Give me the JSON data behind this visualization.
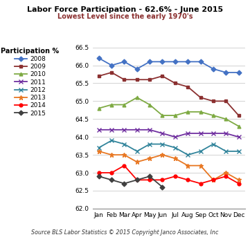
{
  "title": "Labor Force Participation - 62.6% - June 2015",
  "subtitle": "Lowest Level since the early 1970's",
  "source": "Source BLS Labor Statistics © 2015 Copyright Janco Associates, Inc",
  "legend_title": "Participation %",
  "months": [
    "Jan",
    "Feb",
    "Mar",
    "Apr",
    "May",
    "Jun",
    "Jul",
    "Aug",
    "Sep",
    "Oct",
    "Nov",
    "Dec"
  ],
  "ylim": [
    62.0,
    66.5
  ],
  "yticks": [
    62.0,
    62.5,
    63.0,
    63.5,
    64.0,
    64.5,
    65.0,
    65.5,
    66.0,
    66.5
  ],
  "series": {
    "2008": {
      "color": "#4472C4",
      "marker": "D",
      "markersize": 3.5,
      "linewidth": 1.3,
      "values": [
        66.2,
        66.0,
        66.1,
        65.9,
        66.1,
        66.1,
        66.1,
        66.1,
        66.1,
        65.9,
        65.8,
        65.8
      ]
    },
    "2009": {
      "color": "#8B3030",
      "marker": "s",
      "markersize": 3.5,
      "linewidth": 1.3,
      "values": [
        65.7,
        65.8,
        65.6,
        65.6,
        65.6,
        65.7,
        65.5,
        65.4,
        65.1,
        65.0,
        65.0,
        64.6
      ]
    },
    "2010": {
      "color": "#7EAA43",
      "marker": "^",
      "markersize": 3.5,
      "linewidth": 1.3,
      "values": [
        64.8,
        64.9,
        64.9,
        65.1,
        64.9,
        64.6,
        64.6,
        64.7,
        64.7,
        64.6,
        64.5,
        64.3
      ]
    },
    "2011": {
      "color": "#7030A0",
      "marker": "x",
      "markersize": 4,
      "linewidth": 1.3,
      "values": [
        64.2,
        64.2,
        64.2,
        64.2,
        64.2,
        64.1,
        64.0,
        64.1,
        64.1,
        64.1,
        64.1,
        64.0
      ]
    },
    "2012": {
      "color": "#31849B",
      "marker": "x",
      "markersize": 4,
      "linewidth": 1.3,
      "values": [
        63.7,
        63.9,
        63.8,
        63.6,
        63.8,
        63.8,
        63.7,
        63.5,
        63.6,
        63.8,
        63.6,
        63.6
      ]
    },
    "2013": {
      "color": "#E87722",
      "marker": "*",
      "markersize": 5,
      "linewidth": 1.3,
      "values": [
        63.6,
        63.5,
        63.5,
        63.3,
        63.4,
        63.5,
        63.4,
        63.2,
        63.2,
        62.8,
        63.0,
        62.8
      ]
    },
    "2014": {
      "color": "#FF0000",
      "marker": "o",
      "markersize": 3.5,
      "linewidth": 1.3,
      "values": [
        63.0,
        63.0,
        63.2,
        62.8,
        62.8,
        62.8,
        62.9,
        62.8,
        62.7,
        62.8,
        62.9,
        62.7
      ]
    },
    "2015": {
      "color": "#404040",
      "marker": "D",
      "markersize": 3.5,
      "linewidth": 1.3,
      "values": [
        62.9,
        62.8,
        62.7,
        62.8,
        62.9,
        62.6,
        null,
        null,
        null,
        null,
        null,
        null
      ]
    }
  },
  "legend_order": [
    "2008",
    "2009",
    "2010",
    "2011",
    "2012",
    "2013",
    "2014",
    "2015"
  ],
  "bg_color": "#FFFFFF",
  "grid_color": "#C0C0C0",
  "subtitle_color": "#8B3030",
  "title_fontsize": 8.0,
  "subtitle_fontsize": 7.0,
  "source_fontsize": 5.8,
  "tick_fontsize": 6.5,
  "legend_fontsize": 6.5,
  "legend_title_fontsize": 7.0
}
